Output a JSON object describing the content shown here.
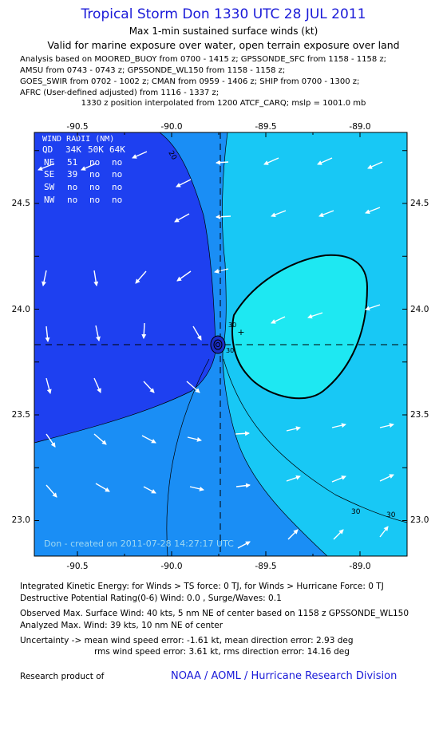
{
  "header": {
    "title": "Tropical Storm Don 1330 UTC 28 JUL 2011",
    "subtitle": "Max 1-min sustained surface winds (kt)",
    "valid": "Valid for marine exposure over water, open terrain exposure over land",
    "analysis_lines": [
      "Analysis based on MOORED_BUOY from 0700 - 1415 z; GPSSONDE_SFC from 1158 - 1158 z;",
      "AMSU from 0743 - 0743 z; GPSSONDE_WL150 from 1158 - 1158 z;",
      "GOES_SWIR from 0702 - 1002 z; CMAN from 0959 - 1406 z; SHIP from 0700 - 1300 z;",
      "AFRC (User-defined adjusted) from 1116 - 1337 z;"
    ],
    "interp_line": "1330 z position interpolated from 1200 ATCF_CARQ; mslp = 1001.0 mb"
  },
  "map": {
    "lon_ticks": [
      "-90.5",
      "-90.0",
      "-89.5",
      "-89.0"
    ],
    "lat_ticks": [
      "24.5",
      "24.0",
      "23.5",
      "23.0"
    ],
    "lon_range": [
      -90.75,
      -88.75
    ],
    "lat_range": [
      22.83,
      24.83
    ],
    "center": {
      "lon": -89.75,
      "lat": 23.82
    },
    "max_wind_marker": {
      "lon": -89.64,
      "lat": 23.88
    },
    "contour_labels": [
      "20",
      "30",
      "30",
      "30",
      "30"
    ],
    "colors": {
      "band_lt20": "#1e40f0",
      "band_20_30": "#1a8ef5",
      "band_30_34": "#18c8f5",
      "band_34_plus": "#1ee8f2"
    },
    "wind_radii": {
      "heading": "WIND RADII (NM)",
      "columns": [
        "QD",
        "34K",
        "50K",
        "64K"
      ],
      "rows": [
        [
          "NE",
          "51",
          "no",
          "no"
        ],
        [
          "SE",
          "39",
          "no",
          "no"
        ],
        [
          "SW",
          "no",
          "no",
          "no"
        ],
        [
          "NW",
          "no",
          "no",
          "no"
        ]
      ]
    },
    "watermark": "Don - created on 2011-07-28 14:27:17 UTC"
  },
  "footer": {
    "ike": "Integrated Kinetic Energy:  for Winds > TS force: 0 TJ,  for Winds > Hurricane Force: 0 TJ",
    "dpr": "Destructive Potential Rating(0-6)   Wind: 0.0 , Surge/Waves: 0.1",
    "observed": "Observed Max. Surface Wind: 40 kts, 5 nm NE of center based on 1158 z GPSSONDE_WL150",
    "analyzed": "Analyzed Max. Wind: 39 kts, 10 nm NE of center",
    "uncertainty_1": "Uncertainty -> mean wind speed error:  -1.61 kt,   mean direction error: 2.93 deg",
    "uncertainty_2": "rms wind speed error: 3.61 kt,  rms direction error: 14.16 deg",
    "credit_label": "Research product of",
    "credit_link": "NOAA / AOML / Hurricane Research Division"
  }
}
